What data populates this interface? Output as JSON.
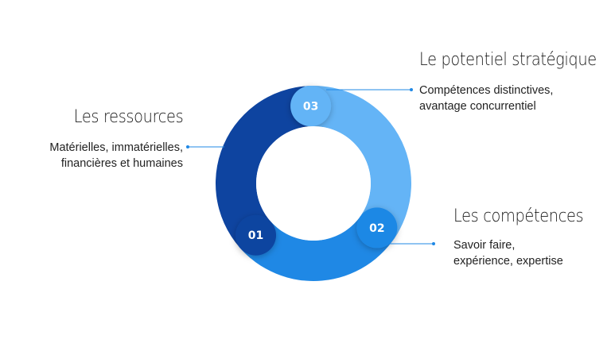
{
  "colors": {
    "segment_01": "#0e44a0",
    "segment_02": "#1f88e5",
    "segment_03": "#64b4f6",
    "leader": "#1f88e5"
  },
  "segments": [
    {
      "number": "01",
      "title": "Les ressources",
      "lines": [
        "Matérielles, immatérielles,",
        "financières et humaines"
      ]
    },
    {
      "number": "02",
      "title": "Les compétences",
      "lines": [
        "Savoir faire,",
        "expérience, expertise"
      ]
    },
    {
      "number": "03",
      "title": "Le potentiel stratégique",
      "lines": [
        "Compétences distinctives,",
        "avantage concurrentiel"
      ]
    }
  ]
}
